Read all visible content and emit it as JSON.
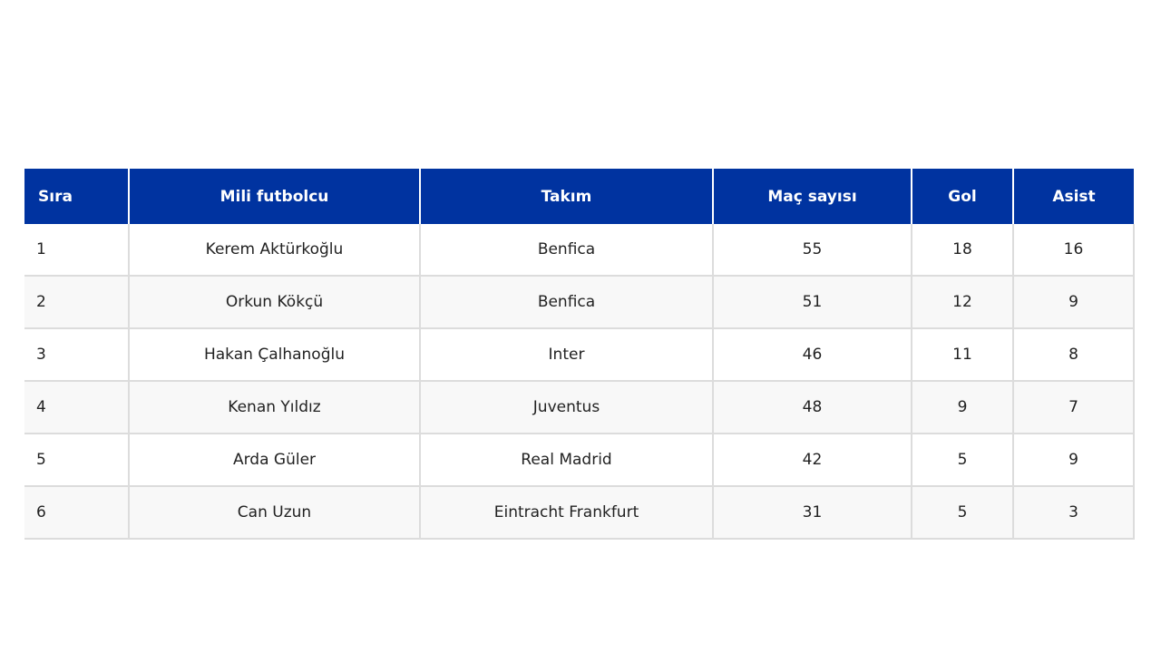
{
  "table": {
    "header_bg": "#0033a0",
    "headers": {
      "rank": "Sıra",
      "player": "Mili futbolcu",
      "team": "Takım",
      "matches": "Maç sayısı",
      "goals": "Gol",
      "assists": "Asist"
    },
    "rows": [
      {
        "rank": "1",
        "player": "Kerem Aktürkoğlu",
        "team": "Benfica",
        "matches": "55",
        "goals": "18",
        "assists": "16"
      },
      {
        "rank": "2",
        "player": "Orkun Kökçü",
        "team": "Benfica",
        "matches": "51",
        "goals": "12",
        "assists": "9"
      },
      {
        "rank": "3",
        "player": "Hakan Çalhanoğlu",
        "team": "Inter",
        "matches": "46",
        "goals": "11",
        "assists": "8"
      },
      {
        "rank": "4",
        "player": "Kenan Yıldız",
        "team": "Juventus",
        "matches": "48",
        "goals": "9",
        "assists": "7"
      },
      {
        "rank": "5",
        "player": "Arda Güler",
        "team": "Real Madrid",
        "matches": "42",
        "goals": "5",
        "assists": "9"
      },
      {
        "rank": "6",
        "player": "Can Uzun",
        "team": "Eintracht Frankfurt",
        "matches": "31",
        "goals": "5",
        "assists": "3"
      }
    ]
  }
}
